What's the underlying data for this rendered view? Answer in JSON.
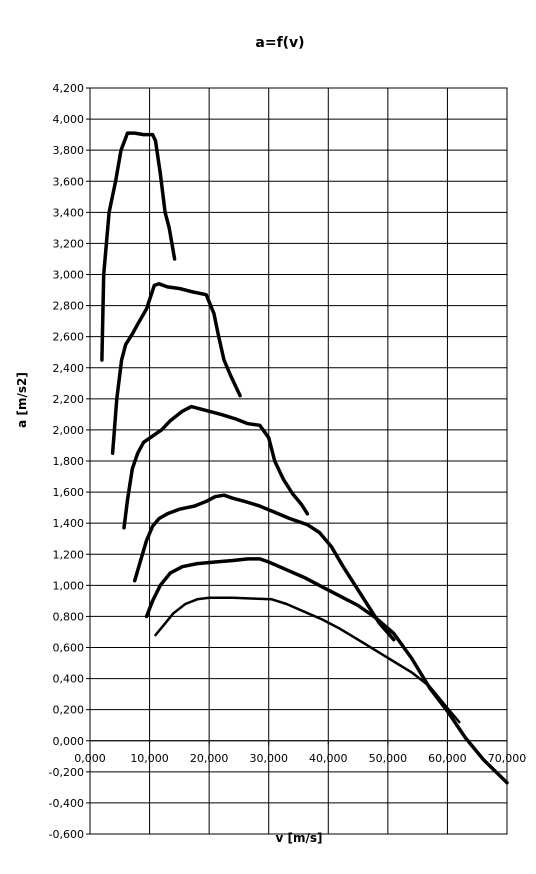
{
  "chart_data": {
    "type": "line",
    "title": "a=f(v)",
    "xlabel": "v [m/s]",
    "ylabel": "a [m/s2]",
    "xlim": [
      0,
      70000
    ],
    "ylim": [
      -600,
      4200
    ],
    "grid": true,
    "legend": "none",
    "x_ticks": [
      {
        "value": 0,
        "label": "0,000"
      },
      {
        "value": 10000,
        "label": "10,000"
      },
      {
        "value": 20000,
        "label": "20,000"
      },
      {
        "value": 30000,
        "label": "30,000"
      },
      {
        "value": 40000,
        "label": "40,000"
      },
      {
        "value": 50000,
        "label": "50,000"
      },
      {
        "value": 60000,
        "label": "60,000"
      },
      {
        "value": 70000,
        "label": "70,000"
      }
    ],
    "y_ticks": [
      {
        "value": 4200,
        "label": "4,200"
      },
      {
        "value": 4000,
        "label": "4,000"
      },
      {
        "value": 3800,
        "label": "3,800"
      },
      {
        "value": 3600,
        "label": "3,600"
      },
      {
        "value": 3400,
        "label": "3,400"
      },
      {
        "value": 3200,
        "label": "3,200"
      },
      {
        "value": 3000,
        "label": "3,000"
      },
      {
        "value": 2800,
        "label": "2,800"
      },
      {
        "value": 2600,
        "label": "2,600"
      },
      {
        "value": 2400,
        "label": "2,400"
      },
      {
        "value": 2200,
        "label": "2,200"
      },
      {
        "value": 2000,
        "label": "2,000"
      },
      {
        "value": 1800,
        "label": "1,800"
      },
      {
        "value": 1600,
        "label": "1,600"
      },
      {
        "value": 1400,
        "label": "1,400"
      },
      {
        "value": 1200,
        "label": "1,200"
      },
      {
        "value": 1000,
        "label": "1,000"
      },
      {
        "value": 800,
        "label": "0,800"
      },
      {
        "value": 600,
        "label": "0,600"
      },
      {
        "value": 400,
        "label": "0,400"
      },
      {
        "value": 200,
        "label": "0,200"
      },
      {
        "value": 0,
        "label": "0,000"
      },
      {
        "value": -200,
        "label": "-0,200"
      },
      {
        "value": -400,
        "label": "-0,400"
      },
      {
        "value": -600,
        "label": "-0,600"
      }
    ],
    "series": [
      {
        "stroke_weight": "heavy",
        "points": [
          [
            2000,
            2450
          ],
          [
            2300,
            3000
          ],
          [
            3200,
            3400
          ],
          [
            4300,
            3600
          ],
          [
            5200,
            3800
          ],
          [
            6300,
            3910
          ],
          [
            7500,
            3910
          ],
          [
            9000,
            3900
          ],
          [
            10500,
            3900
          ],
          [
            11000,
            3860
          ],
          [
            11800,
            3650
          ],
          [
            12600,
            3400
          ],
          [
            13300,
            3300
          ],
          [
            14200,
            3100
          ]
        ]
      },
      {
        "stroke_weight": "heavy",
        "points": [
          [
            3800,
            1850
          ],
          [
            4500,
            2200
          ],
          [
            5300,
            2450
          ],
          [
            6000,
            2550
          ],
          [
            7000,
            2610
          ],
          [
            8000,
            2680
          ],
          [
            9500,
            2780
          ],
          [
            10800,
            2930
          ],
          [
            11600,
            2940
          ],
          [
            13000,
            2920
          ],
          [
            15000,
            2910
          ],
          [
            17000,
            2890
          ],
          [
            19500,
            2870
          ],
          [
            20800,
            2750
          ],
          [
            21600,
            2600
          ],
          [
            22500,
            2450
          ],
          [
            23600,
            2350
          ],
          [
            25200,
            2220
          ]
        ]
      },
      {
        "stroke_weight": "heavy",
        "points": [
          [
            5700,
            1370
          ],
          [
            6300,
            1550
          ],
          [
            7100,
            1750
          ],
          [
            8000,
            1850
          ],
          [
            9000,
            1920
          ],
          [
            10500,
            1960
          ],
          [
            12000,
            2000
          ],
          [
            13500,
            2060
          ],
          [
            15500,
            2120
          ],
          [
            17000,
            2150
          ],
          [
            19000,
            2130
          ],
          [
            22000,
            2100
          ],
          [
            24500,
            2070
          ],
          [
            26500,
            2040
          ],
          [
            28500,
            2030
          ],
          [
            30000,
            1950
          ],
          [
            31000,
            1800
          ],
          [
            32500,
            1680
          ],
          [
            34000,
            1590
          ],
          [
            35500,
            1520
          ],
          [
            36500,
            1460
          ]
        ]
      },
      {
        "stroke_weight": "heavy",
        "points": [
          [
            7500,
            1030
          ],
          [
            8500,
            1160
          ],
          [
            9500,
            1290
          ],
          [
            10500,
            1380
          ],
          [
            11600,
            1430
          ],
          [
            13000,
            1460
          ],
          [
            15000,
            1490
          ],
          [
            17500,
            1510
          ],
          [
            19500,
            1540
          ],
          [
            21000,
            1570
          ],
          [
            22500,
            1580
          ],
          [
            24000,
            1560
          ],
          [
            26000,
            1540
          ],
          [
            28500,
            1510
          ],
          [
            31000,
            1470
          ],
          [
            33500,
            1430
          ],
          [
            36500,
            1390
          ],
          [
            38500,
            1340
          ],
          [
            40500,
            1250
          ],
          [
            42500,
            1120
          ],
          [
            44500,
            1000
          ],
          [
            46500,
            880
          ],
          [
            48500,
            760
          ],
          [
            51000,
            650
          ]
        ]
      },
      {
        "stroke_weight": "heavy",
        "points": [
          [
            9500,
            800
          ],
          [
            10500,
            900
          ],
          [
            11800,
            1000
          ],
          [
            13500,
            1080
          ],
          [
            15500,
            1120
          ],
          [
            18000,
            1140
          ],
          [
            21000,
            1150
          ],
          [
            24000,
            1160
          ],
          [
            26500,
            1170
          ],
          [
            28500,
            1170
          ],
          [
            30000,
            1150
          ],
          [
            33000,
            1100
          ],
          [
            36000,
            1050
          ],
          [
            39000,
            990
          ],
          [
            42000,
            930
          ],
          [
            45000,
            870
          ],
          [
            48000,
            790
          ],
          [
            51000,
            690
          ],
          [
            54000,
            530
          ],
          [
            57000,
            340
          ],
          [
            60000,
            190
          ],
          [
            63000,
            20
          ],
          [
            66000,
            -120
          ],
          [
            70000,
            -270
          ]
        ]
      },
      {
        "stroke_weight": "light",
        "points": [
          [
            11000,
            680
          ],
          [
            12500,
            750
          ],
          [
            14000,
            820
          ],
          [
            16000,
            880
          ],
          [
            18000,
            910
          ],
          [
            20000,
            920
          ],
          [
            24000,
            920
          ],
          [
            27000,
            915
          ],
          [
            30500,
            910
          ],
          [
            33000,
            880
          ],
          [
            36000,
            830
          ],
          [
            39000,
            780
          ],
          [
            42000,
            720
          ],
          [
            45000,
            650
          ],
          [
            48000,
            580
          ],
          [
            51000,
            510
          ],
          [
            54000,
            440
          ],
          [
            57000,
            350
          ],
          [
            60000,
            210
          ],
          [
            62000,
            120
          ]
        ]
      }
    ]
  }
}
